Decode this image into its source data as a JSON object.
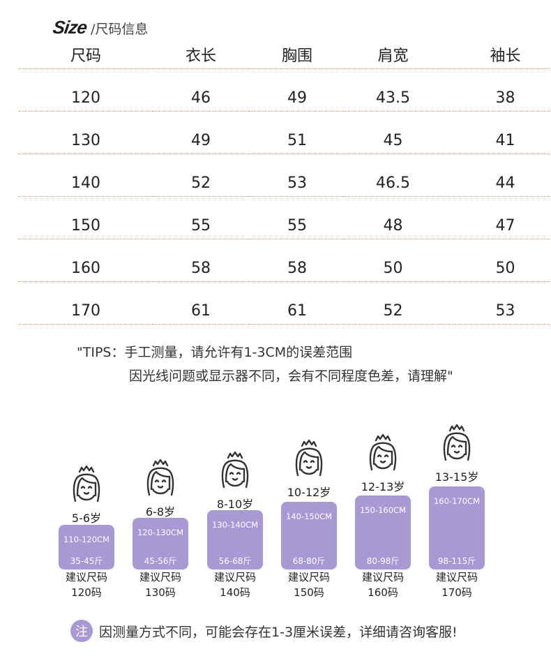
{
  "title": {
    "size_word": "Size",
    "subtitle": "/尺码信息"
  },
  "table": {
    "headers": [
      "尺码",
      "衣长",
      "胸围",
      "肩宽",
      "袖长"
    ],
    "rows": [
      [
        "120",
        "46",
        "49",
        "43.5",
        "38"
      ],
      [
        "130",
        "49",
        "51",
        "45",
        "41"
      ],
      [
        "140",
        "52",
        "53",
        "46.5",
        "44"
      ],
      [
        "150",
        "55",
        "55",
        "48",
        "47"
      ],
      [
        "160",
        "58",
        "58",
        "50",
        "50"
      ],
      [
        "170",
        "61",
        "61",
        "52",
        "53"
      ]
    ]
  },
  "tips": {
    "line1": "\"TIPS：手工测量，请允许有1-3CM的误差范围",
    "line2": "因光线问题或显示器不同，会有不同程度色差，请理解\""
  },
  "guide": {
    "accent_color": "#a799d3",
    "items": [
      {
        "age": "5-6岁",
        "height": "110-120CM",
        "weight": "35-45斤",
        "rec_label": "建议尺码",
        "rec_size": "120码"
      },
      {
        "age": "6-8岁",
        "height": "120-130CM",
        "weight": "45-56斤",
        "rec_label": "建议尺码",
        "rec_size": "130码"
      },
      {
        "age": "8-10岁",
        "height": "130-140CM",
        "weight": "56-68斤",
        "rec_label": "建议尺码",
        "rec_size": "140码"
      },
      {
        "age": "10-12岁",
        "height": "140-150CM",
        "weight": "68-80斤",
        "rec_label": "建议尺码",
        "rec_size": "150码"
      },
      {
        "age": "12-13岁",
        "height": "150-160CM",
        "weight": "80-98斤",
        "rec_label": "建议尺码",
        "rec_size": "160码"
      },
      {
        "age": "13-15岁",
        "height": "160-170CM",
        "weight": "98-115斤",
        "rec_label": "建议尺码",
        "rec_size": "170码"
      }
    ]
  },
  "note": {
    "badge": "注",
    "text": "因测量方式不同，可能会存在1-3厘米误差，详细请咨询客服!"
  }
}
